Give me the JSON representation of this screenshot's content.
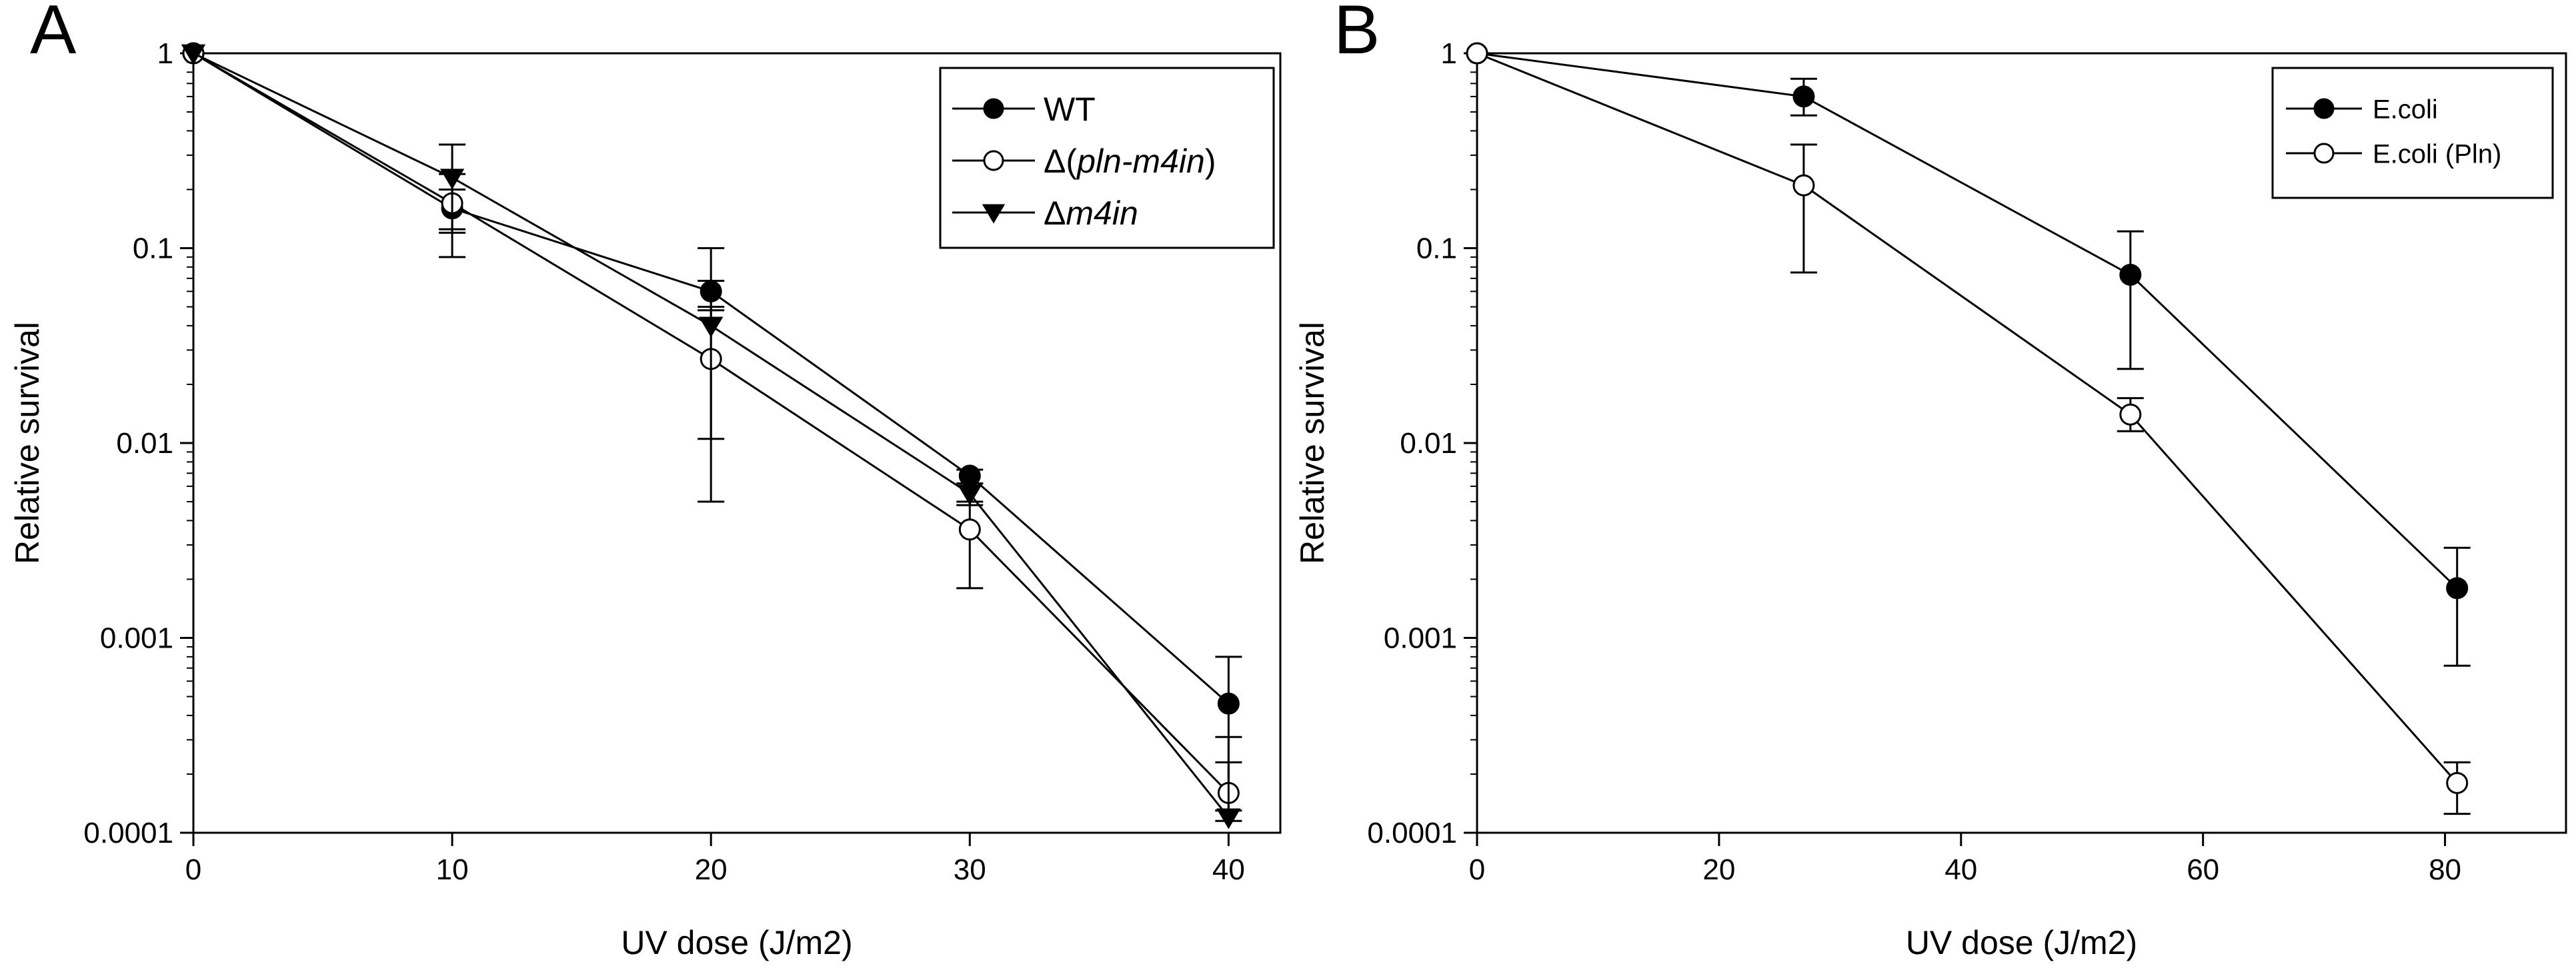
{
  "chart_data": [
    {
      "panel_label": "A",
      "type": "line",
      "xlabel": "UV dose (J/m2)",
      "ylabel": "Relative survival",
      "xlim": [
        0,
        42
      ],
      "ylim": [
        0.0001,
        1
      ],
      "yscale": "log",
      "xticks": [
        "0",
        "10",
        "20",
        "30",
        "40"
      ],
      "xtick_values": [
        0,
        10,
        20,
        30,
        40
      ],
      "yticks": [
        "1",
        "0.1",
        "0.01",
        "0.001",
        "0.0001"
      ],
      "ytick_values": [
        1,
        0.1,
        0.01,
        0.001,
        0.0001
      ],
      "grid": false,
      "legend_position": "top-right",
      "series": [
        {
          "name": "WT",
          "name_parts": [
            {
              "text": "WT",
              "italic": false
            }
          ],
          "marker": "filled-circle",
          "x": [
            0,
            10,
            20,
            30,
            40
          ],
          "y": [
            1,
            0.16,
            0.06,
            0.0068,
            0.00046
          ],
          "err_low": [
            1,
            0.125,
            0.048,
            0.0062,
            0.00013
          ],
          "err_high": [
            1,
            0.2,
            0.1,
            0.0073,
            0.0008
          ]
        },
        {
          "name": "Δ(pln-m4in)",
          "name_parts": [
            {
              "text": "Δ(",
              "italic": false
            },
            {
              "text": "pln-m4in",
              "italic": true
            },
            {
              "text": ")",
              "italic": false
            }
          ],
          "marker": "open-circle",
          "x": [
            0,
            10,
            20,
            30,
            40
          ],
          "y": [
            1,
            0.17,
            0.027,
            0.0036,
            0.00016
          ],
          "err_low": [
            1,
            0.09,
            0.005,
            0.0018,
            0.00013
          ],
          "err_high": [
            1,
            0.24,
            0.05,
            0.005,
            0.00031
          ]
        },
        {
          "name": "Δm4in",
          "name_parts": [
            {
              "text": "Δ",
              "italic": false
            },
            {
              "text": "m4in",
              "italic": true
            }
          ],
          "marker": "filled-triangle-down",
          "x": [
            0,
            10,
            20,
            30,
            40
          ],
          "y": [
            1,
            0.23,
            0.04,
            0.0055,
            0.00012
          ],
          "err_low": [
            1,
            0.12,
            0.0105,
            0.0048,
            0.000115
          ],
          "err_high": [
            1,
            0.34,
            0.068,
            0.0062,
            0.00023
          ]
        }
      ]
    },
    {
      "panel_label": "B",
      "type": "line",
      "xlabel": "UV dose (J/m2)",
      "ylabel": "Relative survival",
      "xlim": [
        0,
        90
      ],
      "ylim": [
        0.0001,
        1
      ],
      "yscale": "log",
      "xticks": [
        "0",
        "20",
        "40",
        "60",
        "80"
      ],
      "xtick_values": [
        0,
        20,
        40,
        60,
        80
      ],
      "yticks": [
        "1",
        "0.1",
        "0.01",
        "0.001",
        "0.0001"
      ],
      "ytick_values": [
        1,
        0.1,
        0.01,
        0.001,
        0.0001
      ],
      "grid": false,
      "legend_position": "top-right",
      "series": [
        {
          "name": "E.coli",
          "name_parts": [
            {
              "text": "E.coli",
              "italic": false
            }
          ],
          "marker": "filled-circle",
          "x": [
            0,
            27,
            54,
            81
          ],
          "y": [
            1,
            0.6,
            0.073,
            0.0018
          ],
          "err_low": [
            1,
            0.48,
            0.024,
            0.00072
          ],
          "err_high": [
            1,
            0.74,
            0.122,
            0.0029
          ]
        },
        {
          "name": "E.coli (Pln)",
          "name_parts": [
            {
              "text": "E.coli (Pln)",
              "italic": false
            }
          ],
          "marker": "open-circle",
          "x": [
            0,
            27,
            54,
            81
          ],
          "y": [
            1,
            0.21,
            0.014,
            0.00018
          ],
          "err_low": [
            1,
            0.075,
            0.0115,
            0.000125
          ],
          "err_high": [
            1,
            0.34,
            0.017,
            0.00023
          ]
        }
      ]
    }
  ]
}
